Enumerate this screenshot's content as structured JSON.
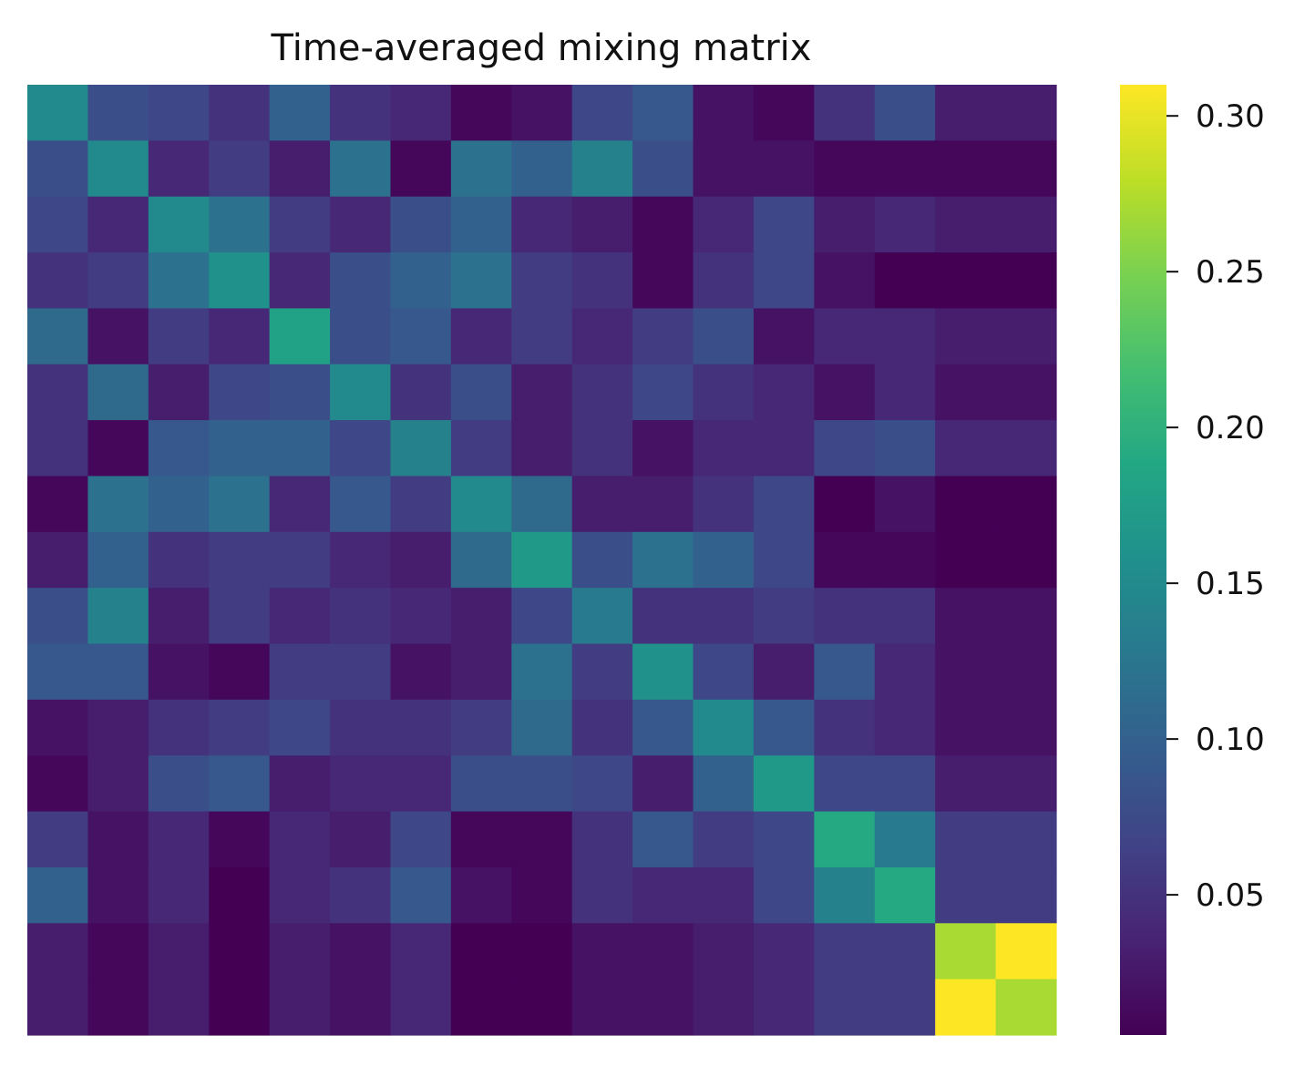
{
  "chart_data": {
    "type": "heatmap",
    "title": "Time-averaged mixing matrix",
    "xlabel": "",
    "ylabel": "",
    "colormap": "viridis",
    "colorbar": {
      "min": 0.005,
      "max": 0.31,
      "ticks": [
        0.05,
        0.1,
        0.15,
        0.2,
        0.25,
        0.3
      ],
      "tick_labels": [
        "0.05",
        "0.10",
        "0.15",
        "0.20",
        "0.25",
        "0.30"
      ],
      "placement": "right"
    },
    "grid": false,
    "x_tick_labels": [],
    "y_tick_labels": [],
    "columns": 17,
    "rows": 17,
    "values": [
      [
        0.15,
        0.08,
        0.07,
        0.05,
        0.1,
        0.05,
        0.04,
        0.01,
        0.02,
        0.07,
        0.09,
        0.02,
        0.01,
        0.05,
        0.08,
        0.03,
        0.03
      ],
      [
        0.08,
        0.15,
        0.04,
        0.06,
        0.03,
        0.12,
        0.01,
        0.12,
        0.1,
        0.14,
        0.08,
        0.02,
        0.02,
        0.01,
        0.01,
        0.01,
        0.01
      ],
      [
        0.07,
        0.04,
        0.15,
        0.12,
        0.06,
        0.04,
        0.08,
        0.1,
        0.04,
        0.03,
        0.01,
        0.04,
        0.07,
        0.03,
        0.04,
        0.03,
        0.03
      ],
      [
        0.05,
        0.06,
        0.12,
        0.16,
        0.04,
        0.08,
        0.1,
        0.12,
        0.06,
        0.05,
        0.01,
        0.05,
        0.07,
        0.02,
        0.005,
        0.005,
        0.005
      ],
      [
        0.11,
        0.02,
        0.06,
        0.04,
        0.18,
        0.08,
        0.09,
        0.04,
        0.06,
        0.04,
        0.06,
        0.08,
        0.02,
        0.04,
        0.04,
        0.03,
        0.03
      ],
      [
        0.05,
        0.11,
        0.03,
        0.07,
        0.08,
        0.15,
        0.05,
        0.08,
        0.03,
        0.05,
        0.07,
        0.05,
        0.04,
        0.02,
        0.04,
        0.02,
        0.02
      ],
      [
        0.05,
        0.01,
        0.09,
        0.1,
        0.1,
        0.07,
        0.14,
        0.06,
        0.03,
        0.05,
        0.02,
        0.04,
        0.04,
        0.07,
        0.08,
        0.04,
        0.04
      ],
      [
        0.01,
        0.12,
        0.1,
        0.12,
        0.04,
        0.09,
        0.06,
        0.15,
        0.11,
        0.03,
        0.03,
        0.05,
        0.07,
        0.005,
        0.02,
        0.005,
        0.005
      ],
      [
        0.03,
        0.1,
        0.05,
        0.06,
        0.06,
        0.04,
        0.03,
        0.11,
        0.17,
        0.08,
        0.12,
        0.1,
        0.07,
        0.01,
        0.01,
        0.002,
        0.002
      ],
      [
        0.08,
        0.14,
        0.03,
        0.06,
        0.04,
        0.05,
        0.04,
        0.03,
        0.07,
        0.13,
        0.05,
        0.05,
        0.06,
        0.05,
        0.05,
        0.02,
        0.02
      ],
      [
        0.09,
        0.09,
        0.02,
        0.01,
        0.06,
        0.06,
        0.02,
        0.03,
        0.12,
        0.06,
        0.16,
        0.07,
        0.03,
        0.09,
        0.04,
        0.02,
        0.02
      ],
      [
        0.02,
        0.03,
        0.05,
        0.06,
        0.07,
        0.05,
        0.05,
        0.06,
        0.11,
        0.05,
        0.09,
        0.15,
        0.09,
        0.05,
        0.04,
        0.02,
        0.02
      ],
      [
        0.01,
        0.03,
        0.08,
        0.09,
        0.03,
        0.04,
        0.04,
        0.08,
        0.08,
        0.07,
        0.03,
        0.1,
        0.17,
        0.07,
        0.07,
        0.03,
        0.03
      ],
      [
        0.06,
        0.02,
        0.04,
        0.01,
        0.04,
        0.03,
        0.07,
        0.01,
        0.01,
        0.05,
        0.09,
        0.06,
        0.07,
        0.19,
        0.13,
        0.06,
        0.06
      ],
      [
        0.1,
        0.02,
        0.04,
        0.005,
        0.04,
        0.05,
        0.09,
        0.02,
        0.01,
        0.05,
        0.04,
        0.04,
        0.07,
        0.14,
        0.19,
        0.06,
        0.06
      ],
      [
        0.03,
        0.01,
        0.03,
        0.005,
        0.03,
        0.02,
        0.04,
        0.005,
        0.005,
        0.02,
        0.02,
        0.03,
        0.04,
        0.06,
        0.06,
        0.27,
        0.31
      ],
      [
        0.03,
        0.01,
        0.03,
        0.005,
        0.03,
        0.02,
        0.04,
        0.005,
        0.005,
        0.02,
        0.02,
        0.03,
        0.04,
        0.06,
        0.06,
        0.31,
        0.27
      ]
    ]
  }
}
